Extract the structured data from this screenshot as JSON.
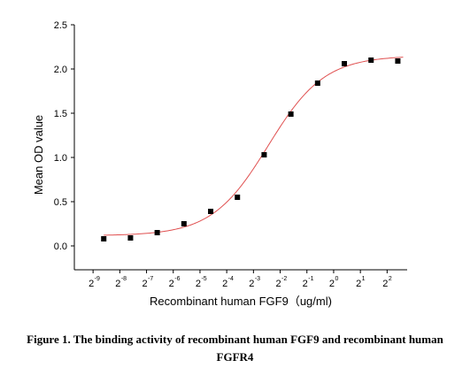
{
  "chart_data": {
    "type": "scatter",
    "title": "",
    "xlabel": "Recombinant human  FGF9（ug/ml)",
    "ylabel": "Mean OD value",
    "x_scale": "log2",
    "x_ticks": [
      -9,
      -8,
      -7,
      -6,
      -5,
      -4,
      -3,
      -2,
      -1,
      0,
      1,
      2
    ],
    "x_tick_labels": [
      {
        "base": "2",
        "exp": "-9"
      },
      {
        "base": "2",
        "exp": "-8"
      },
      {
        "base": "2",
        "exp": "-7"
      },
      {
        "base": "2",
        "exp": "-6"
      },
      {
        "base": "2",
        "exp": "-5"
      },
      {
        "base": "2",
        "exp": "-4"
      },
      {
        "base": "2",
        "exp": "-3"
      },
      {
        "base": "2",
        "exp": "-2"
      },
      {
        "base": "2",
        "exp": "-1"
      },
      {
        "base": "2",
        "exp": "0"
      },
      {
        "base": "2",
        "exp": "1"
      },
      {
        "base": "2",
        "exp": "2"
      }
    ],
    "y_ticks": [
      "0.0",
      "0.5",
      "1.0",
      "1.5",
      "2.0",
      "2.5"
    ],
    "ylim": [
      0,
      2.5
    ],
    "xlim": [
      -9.7,
      2.75
    ],
    "series": [
      {
        "points": [
          {
            "x": -8.6,
            "y": 0.08
          },
          {
            "x": -7.6,
            "y": 0.09
          },
          {
            "x": -6.6,
            "y": 0.15
          },
          {
            "x": -5.6,
            "y": 0.25
          },
          {
            "x": -4.6,
            "y": 0.39
          },
          {
            "x": -3.6,
            "y": 0.55
          },
          {
            "x": -2.6,
            "y": 1.03
          },
          {
            "x": -1.6,
            "y": 1.49
          },
          {
            "x": -0.6,
            "y": 1.84
          },
          {
            "x": 0.4,
            "y": 2.06
          },
          {
            "x": 1.4,
            "y": 2.1
          },
          {
            "x": 2.4,
            "y": 2.09
          }
        ],
        "marker_color": "#000000"
      }
    ],
    "fit": {
      "model": "four-parameter logistic",
      "bottom": 0.115,
      "top": 2.15,
      "center_log2": -2.45,
      "slope": 0.95,
      "color": "#e05050"
    },
    "grid": false,
    "legend": false
  },
  "caption": {
    "line1": "Figure 1. The binding activity of recombinant human FGF9 and recombinant human",
    "line2": "FGFR4"
  }
}
